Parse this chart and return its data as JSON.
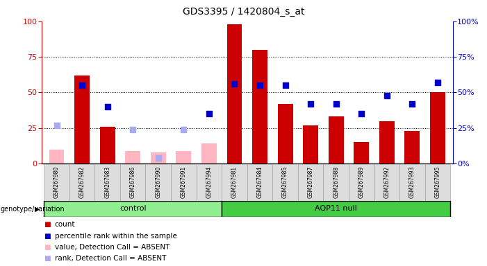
{
  "title": "GDS3395 / 1420804_s_at",
  "samples": [
    "GSM267980",
    "GSM267982",
    "GSM267983",
    "GSM267986",
    "GSM267990",
    "GSM267991",
    "GSM267994",
    "GSM267981",
    "GSM267984",
    "GSM267985",
    "GSM267987",
    "GSM267988",
    "GSM267989",
    "GSM267992",
    "GSM267993",
    "GSM267995"
  ],
  "control_count": 7,
  "bar_color": "#CC0000",
  "bar_absent_color": "#FFB6C1",
  "dot_color": "#0000CC",
  "dot_absent_color": "#AAAAEE",
  "counts": [
    0,
    62,
    26,
    0,
    0,
    0,
    0,
    98,
    80,
    42,
    27,
    33,
    15,
    30,
    23,
    50
  ],
  "counts_absent": [
    10,
    0,
    0,
    9,
    8,
    9,
    14,
    0,
    0,
    0,
    0,
    0,
    0,
    0,
    0,
    0
  ],
  "ranks": [
    0,
    55,
    40,
    0,
    0,
    0,
    35,
    56,
    55,
    55,
    42,
    42,
    35,
    48,
    42,
    57
  ],
  "ranks_absent": [
    27,
    0,
    0,
    24,
    4,
    24,
    0,
    0,
    0,
    0,
    0,
    0,
    0,
    0,
    0,
    0
  ],
  "ylim": [
    0,
    100
  ],
  "yticks": [
    0,
    25,
    50,
    75,
    100
  ],
  "title_fontsize": 10,
  "legend_items": [
    "count",
    "percentile rank within the sample",
    "value, Detection Call = ABSENT",
    "rank, Detection Call = ABSENT"
  ],
  "legend_colors": [
    "#CC0000",
    "#0000CC",
    "#FFB6C1",
    "#AAAAEE"
  ],
  "ctrl_color": "#90EE90",
  "aqp_color": "#44CC44",
  "group_border_color": "#000000",
  "tick_gray": "#DDDDDD"
}
